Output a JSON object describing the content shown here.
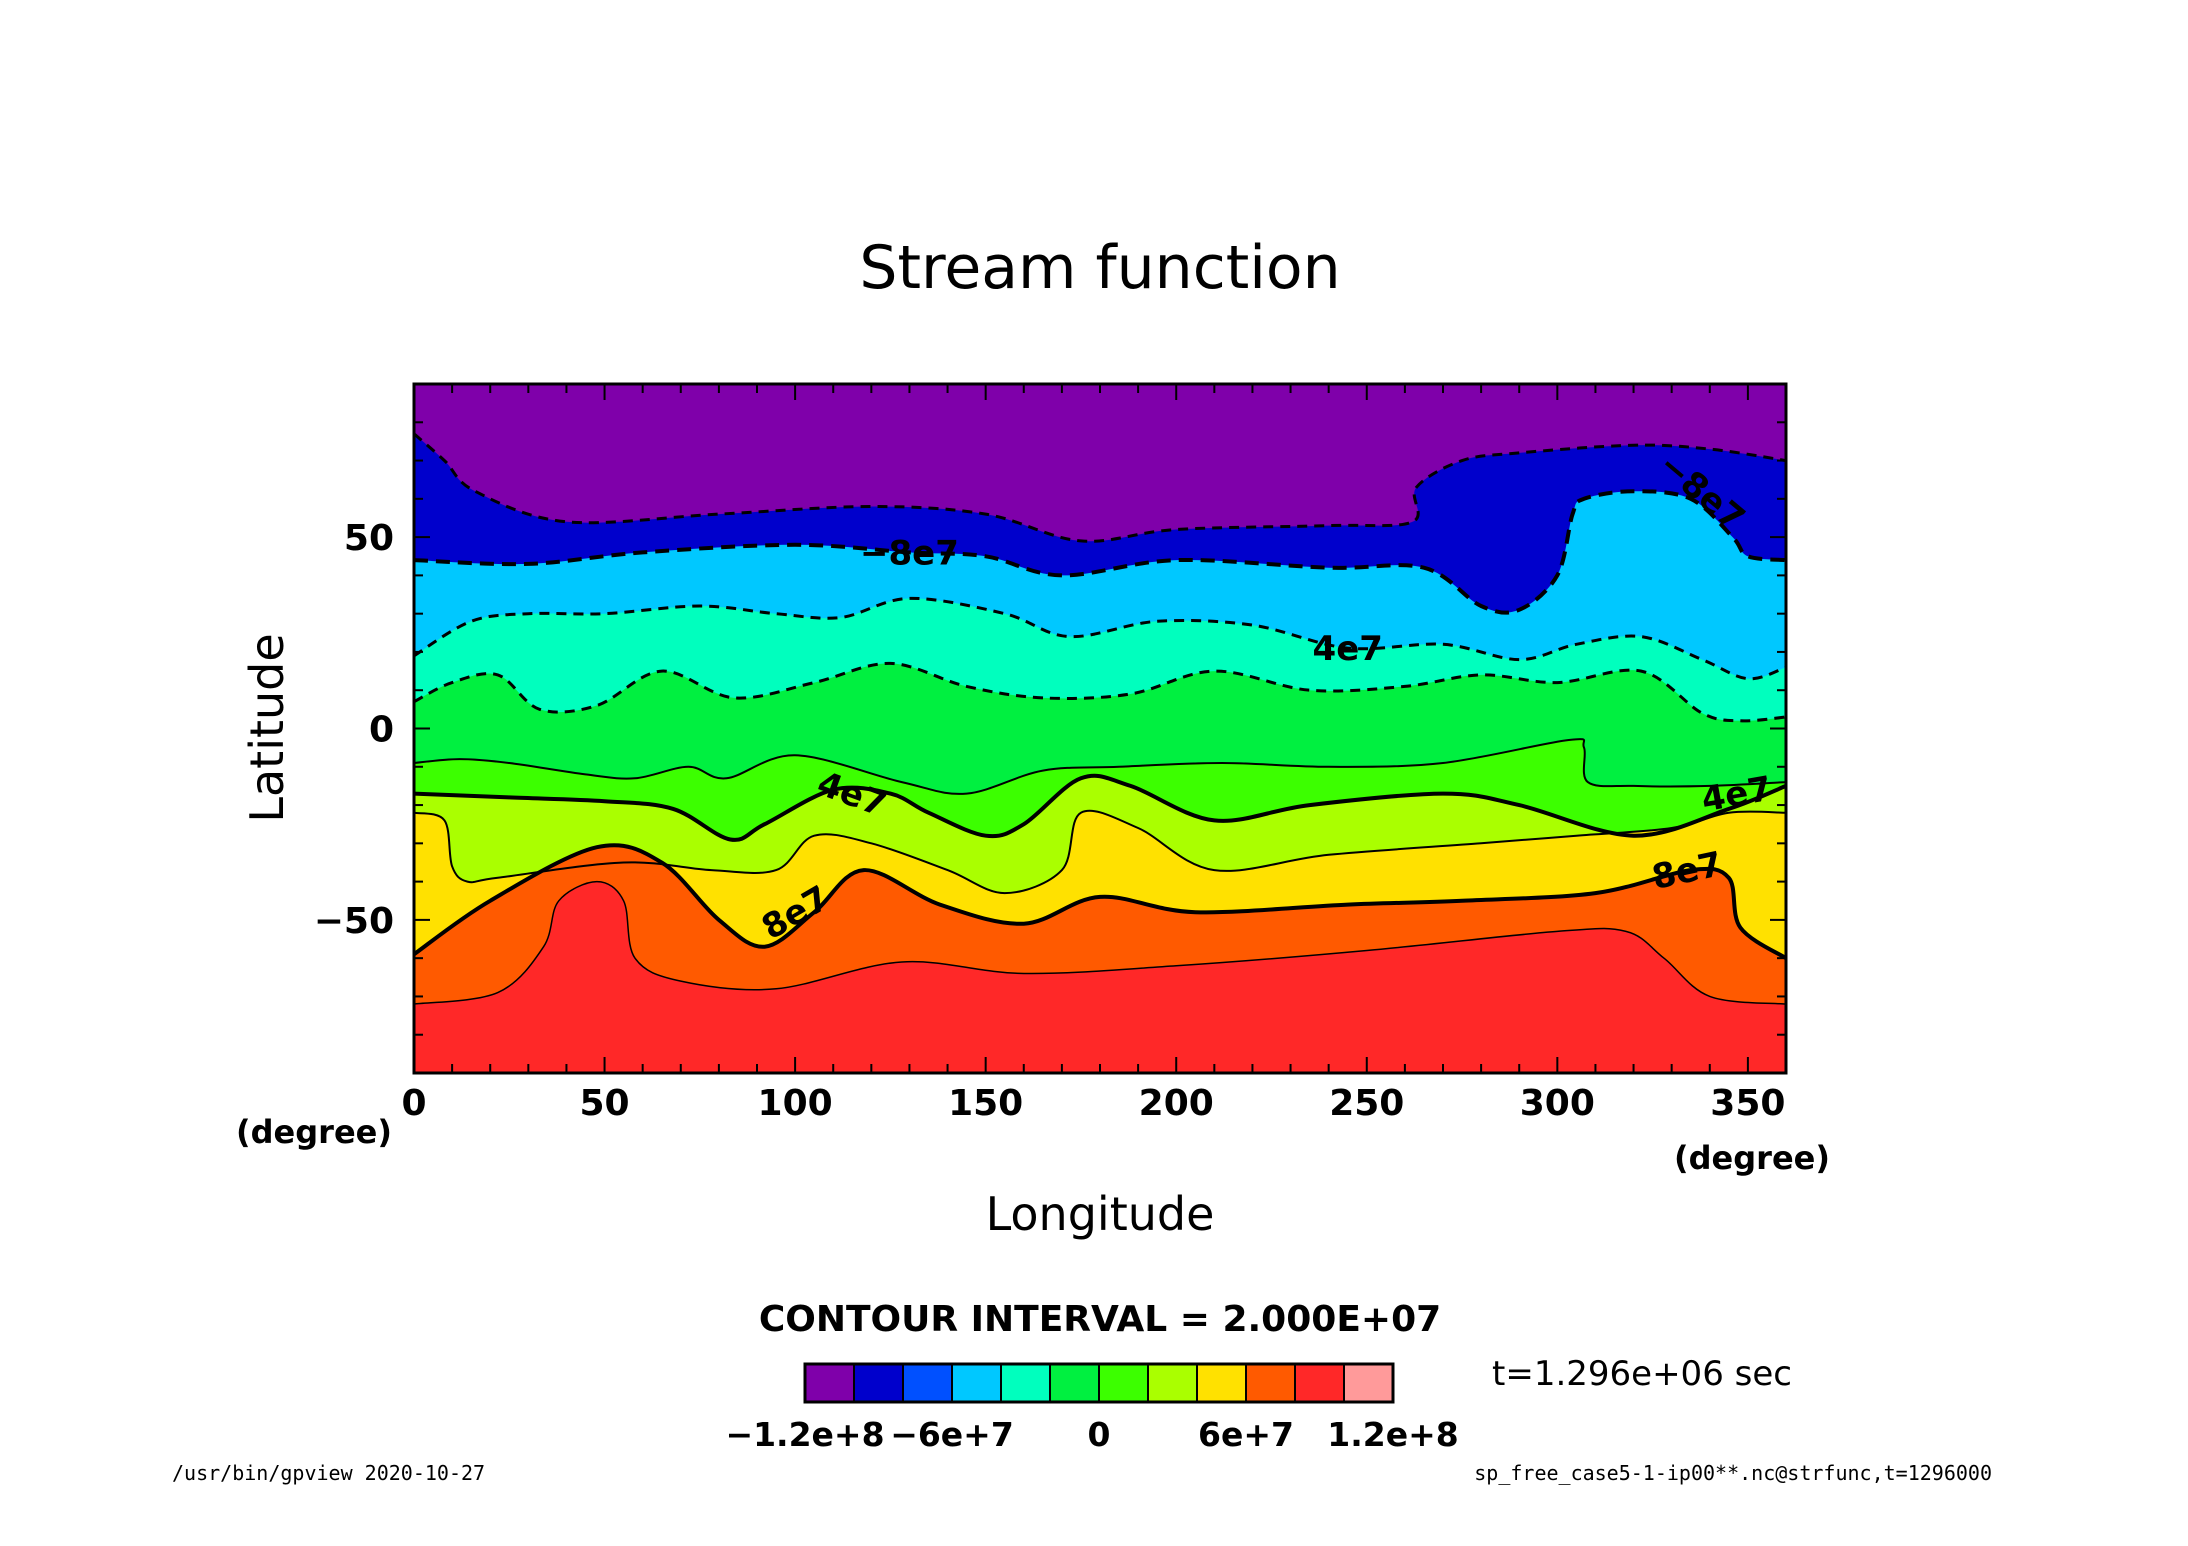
{
  "chart_data": {
    "type": "contour",
    "title": "Stream function",
    "xlabel": "Longitude",
    "ylabel": "Latitude",
    "x_unit": "(degree)",
    "y_unit": "(degree)",
    "xlim": [
      0,
      360
    ],
    "ylim": [
      -90,
      90
    ],
    "x_ticks": [
      0,
      50,
      100,
      150,
      200,
      250,
      300,
      350
    ],
    "y_ticks": [
      -50,
      0,
      50
    ],
    "x_tick_labels": [
      "0",
      "50",
      "100",
      "150",
      "200",
      "250",
      "300",
      "350"
    ],
    "y_tick_labels": [
      "−50",
      "0",
      "50"
    ],
    "contour_interval_text": "CONTOUR INTERVAL = 2.000E+07",
    "contour_interval": 20000000,
    "contour_labels": [
      {
        "text": "−8e7",
        "lon": 130,
        "lat": 46
      },
      {
        "text": "−8e7",
        "lon": 338,
        "lat": 62
      },
      {
        "text": "4e7",
        "lon": 245,
        "lat": 21
      },
      {
        "text": "4e7",
        "lon": 115,
        "lat": -17
      },
      {
        "text": "4e7",
        "lon": 347,
        "lat": -17
      },
      {
        "text": "8e7",
        "lon": 100,
        "lat": -48
      },
      {
        "text": "8e7",
        "lon": 334,
        "lat": -37
      }
    ],
    "colorbar": {
      "levels": [
        -120000000,
        -100000000,
        -80000000,
        -60000000,
        -40000000,
        -20000000,
        0,
        20000000,
        40000000,
        60000000,
        80000000,
        100000000,
        120000000
      ],
      "colors": [
        "#7f00aa",
        "#0000cc",
        "#0050ff",
        "#00c8ff",
        "#00ffbe",
        "#00f040",
        "#3cff00",
        "#aaff00",
        "#ffe100",
        "#ff5a00",
        "#ff2828",
        "#ff9a9a"
      ],
      "labels": [
        "−1.2e+8",
        "−6e+7",
        "0",
        "6e+7",
        "1.2e+8"
      ]
    }
  },
  "time_text": "t=1.296e+06 sec",
  "footer": {
    "left": "/usr/bin/gpview   2020-10-27",
    "right": "sp_free_case5-1-ip00**.nc@strfunc,t=1296000"
  },
  "colors": {
    "frame": "#000000",
    "background": "#ffffff"
  }
}
